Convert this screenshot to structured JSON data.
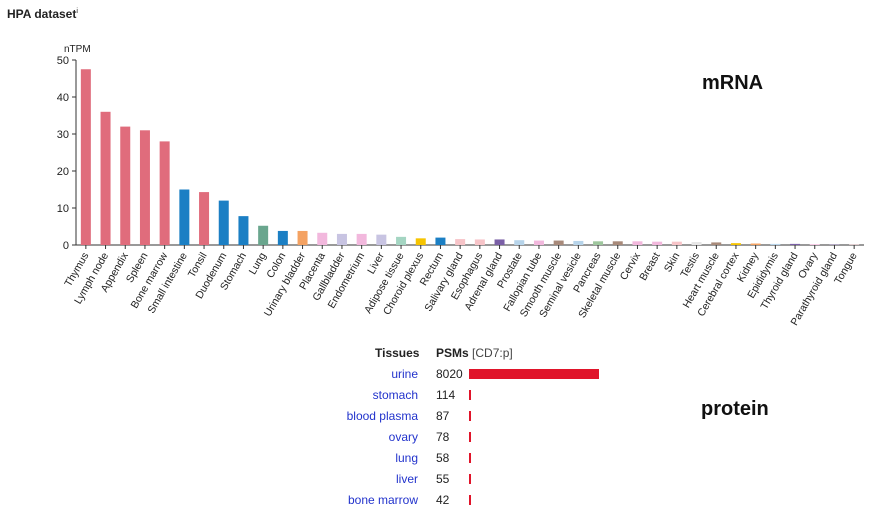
{
  "header": {
    "title": "HPA dataset",
    "info_marker": "i"
  },
  "labels": {
    "mrna": "mRNA",
    "protein": "protein"
  },
  "chart_data": {
    "type": "bar",
    "ylabel": "nTPM",
    "ylim": [
      0,
      50
    ],
    "yticks": [
      0,
      10,
      20,
      30,
      40,
      50
    ],
    "categories": [
      "Thymus",
      "Lymph node",
      "Appendix",
      "Spleen",
      "Bone marrow",
      "Small intestine",
      "Tonsil",
      "Duodenum",
      "Stomach",
      "Lung",
      "Colon",
      "Urinary bladder",
      "Placenta",
      "Gallbladder",
      "Endometrium",
      "Liver",
      "Adipose tissue",
      "Choroid plexus",
      "Rectum",
      "Salivary gland",
      "Esophagus",
      "Adrenal gland",
      "Prostate",
      "Fallopian tube",
      "Smooth muscle",
      "Seminal vesicle",
      "Pancreas",
      "Skeletal muscle",
      "Cervix",
      "Breast",
      "Skin",
      "Testis",
      "Heart muscle",
      "Cerebral cortex",
      "Kidney",
      "Epididymis",
      "Thyroid gland",
      "Ovary",
      "Parathyroid gland",
      "Tongue"
    ],
    "values": [
      47.5,
      36,
      32,
      31,
      28,
      15,
      14.3,
      12,
      7.8,
      5.2,
      3.8,
      3.8,
      3.3,
      3,
      3,
      2.8,
      2.2,
      1.8,
      2,
      1.6,
      1.5,
      1.5,
      1.3,
      1.2,
      1.2,
      1.1,
      1,
      1,
      1,
      0.9,
      0.9,
      0.8,
      0.7,
      0.5,
      0.4,
      0.3,
      0.3,
      0.2,
      0.1,
      0.1
    ],
    "colors": [
      "#e06c7c",
      "#e06c7c",
      "#e06c7c",
      "#e06c7c",
      "#e06c7c",
      "#1b7fc4",
      "#e06c7c",
      "#1b7fc4",
      "#1b7fc4",
      "#6aa68e",
      "#1b7fc4",
      "#f4a262",
      "#f2b8dd",
      "#c8c4e2",
      "#f2b8dd",
      "#c8c4e2",
      "#a4d5c2",
      "#f6c400",
      "#1b7fc4",
      "#f7c4c8",
      "#f7c4c8",
      "#7a5fa6",
      "#b7d4ea",
      "#f2b8dd",
      "#a88a7a",
      "#b7d4ea",
      "#9fc79e",
      "#a88a7a",
      "#f2b8dd",
      "#f2b8dd",
      "#f7c4c8",
      "#e6e6e6",
      "#a88a7a",
      "#f6c400",
      "#f4a262",
      "#b7d4ea",
      "#7a5fa6",
      "#f2b8dd",
      "#7a5fa6",
      "#f7c4c8"
    ]
  },
  "protein_table": {
    "col_tissue": "Tissues",
    "col_psm": "PSMs",
    "col_psm_unit": "[CD7:p]",
    "max_psm": 8020,
    "rows": [
      {
        "tissue": "urine",
        "psm": "8020",
        "value": 8020
      },
      {
        "tissue": "stomach",
        "psm": "114",
        "value": 114
      },
      {
        "tissue": "blood plasma",
        "psm": "87",
        "value": 87
      },
      {
        "tissue": "ovary",
        "psm": "78",
        "value": 78
      },
      {
        "tissue": "lung",
        "psm": "58",
        "value": 58
      },
      {
        "tissue": "liver",
        "psm": "55",
        "value": 55
      },
      {
        "tissue": "bone marrow",
        "psm": "42",
        "value": 42
      }
    ]
  }
}
